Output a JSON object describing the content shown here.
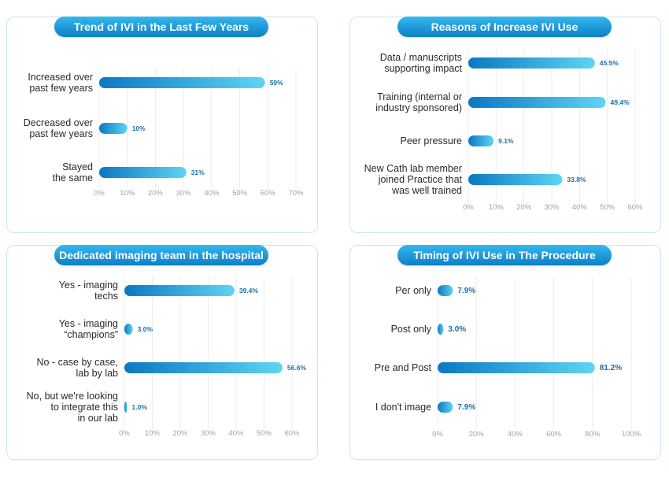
{
  "colors": {
    "bar_dark": "#0b78c2",
    "bar_light": "#5fd4f3",
    "title_light": "#34b8ee",
    "title_dark": "#0d7fc6",
    "value_text": "#1a6fae",
    "border": "#c9e6f3"
  },
  "chart_data": [
    {
      "type": "bar",
      "orientation": "horizontal",
      "title": "Trend of IVI in the Last Few Years",
      "categories": [
        [
          "Increased over",
          "past few years"
        ],
        [
          "Decreased over",
          "past few years"
        ],
        [
          "Stayed",
          "the same"
        ]
      ],
      "values": [
        59,
        10,
        31
      ],
      "value_labels": [
        "59%",
        "10%",
        "31%"
      ],
      "xlim": [
        0,
        70
      ],
      "xticks": [
        "0%",
        "10%",
        "20%",
        "30%",
        "40%",
        "50%",
        "60%",
        "70%"
      ],
      "grid": true
    },
    {
      "type": "bar",
      "orientation": "horizontal",
      "title": "Reasons of Increase IVI Use",
      "categories": [
        [
          "Data / manuscripts",
          "supporting impact"
        ],
        [
          "Training (internal or",
          "industry sponsored)"
        ],
        [
          "Peer pressure"
        ],
        [
          "New Cath lab member",
          "joined Practice that",
          "was well trained"
        ]
      ],
      "values": [
        45.5,
        49.4,
        9.1,
        33.8
      ],
      "value_labels": [
        "45.5%",
        "49.4%",
        "9.1%",
        "33.8%"
      ],
      "xlim": [
        0,
        60
      ],
      "xticks": [
        "0%",
        "10%",
        "20%",
        "30%",
        "40%",
        "50%",
        "60%"
      ],
      "grid": true
    },
    {
      "type": "bar",
      "orientation": "horizontal",
      "title": "Dedicated imaging team in the hospital",
      "categories": [
        [
          "Yes - imaging",
          "techs"
        ],
        [
          "Yes - imaging",
          "“champions”"
        ],
        [
          "No - case by case,",
          "lab by lab"
        ],
        [
          "No, but we're looking",
          "to integrate this",
          "in our lab"
        ]
      ],
      "values": [
        39.4,
        3.0,
        56.6,
        1.0
      ],
      "value_labels": [
        "39.4%",
        "3.0%",
        "56.6%",
        "1.0%"
      ],
      "xlim": [
        0,
        60
      ],
      "xticks": [
        "0%",
        "10%",
        "20%",
        "30%",
        "40%",
        "50%",
        "60%"
      ],
      "grid": true
    },
    {
      "type": "bar",
      "orientation": "horizontal",
      "title": "Timing of IVI Use in The Procedure",
      "categories": [
        [
          "Per only"
        ],
        [
          "Post only"
        ],
        [
          "Pre and Post"
        ],
        [
          "I don't image"
        ]
      ],
      "values": [
        7.9,
        3.0,
        81.2,
        7.9
      ],
      "value_labels": [
        "7.9%",
        "3.0%",
        "81.2%",
        "7.9%"
      ],
      "xlim": [
        0,
        100
      ],
      "xticks": [
        "0%",
        "20%",
        "40%",
        "60%",
        "80%",
        "100%"
      ],
      "grid": true
    }
  ]
}
